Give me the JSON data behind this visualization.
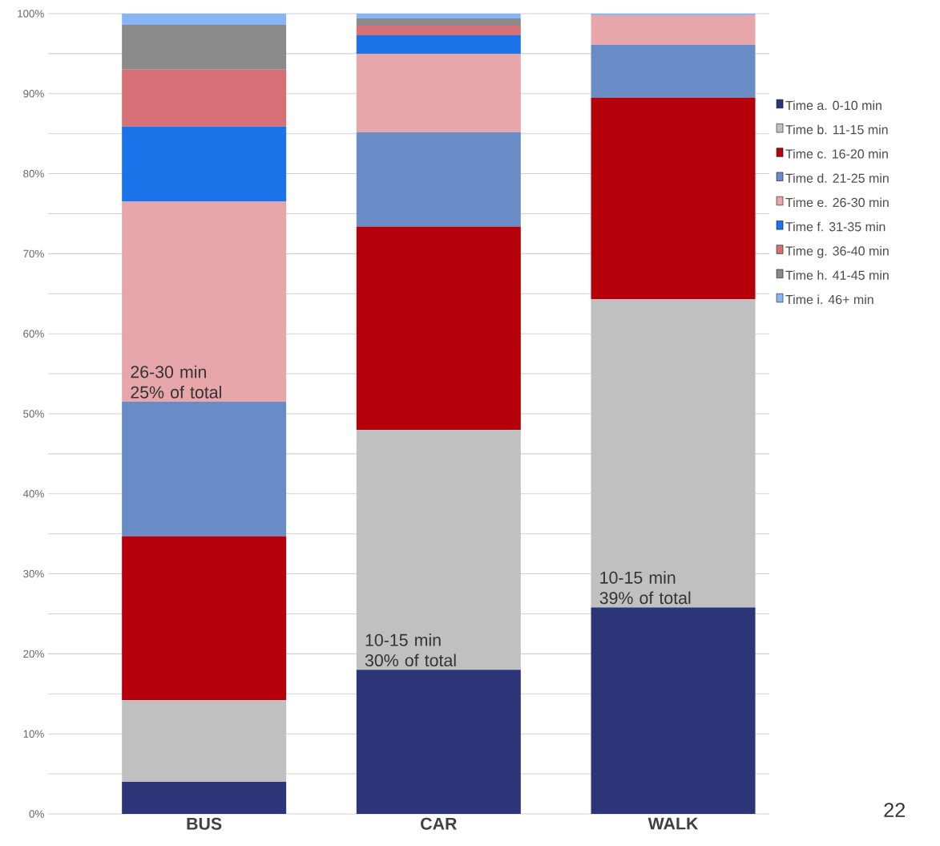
{
  "chart_data": {
    "type": "bar",
    "stacked": true,
    "categories": [
      "BUS",
      "CAR",
      "WALK"
    ],
    "series": [
      {
        "name": "Time a. 0-10 min",
        "color": "#2b3578",
        "values": [
          4.0,
          18.0,
          25.8
        ]
      },
      {
        "name": "Time b. 11-15 min",
        "color": "#c0c0c0",
        "values": [
          10.2,
          30.0,
          38.5
        ]
      },
      {
        "name": "Time c. 16-20 min",
        "color": "#b5000c",
        "values": [
          20.5,
          25.4,
          25.2
        ]
      },
      {
        "name": "Time d. 21-25 min",
        "color": "#6a8cc6",
        "values": [
          16.8,
          11.8,
          6.6
        ]
      },
      {
        "name": "Time e. 26-30 min",
        "color": "#e6a6aa",
        "values": [
          25.0,
          9.8,
          3.7
        ]
      },
      {
        "name": "Time f. 31-35 min",
        "color": "#1a73e8",
        "values": [
          9.4,
          2.3,
          0
        ]
      },
      {
        "name": "Time g. 36-40 min",
        "color": "#d47076",
        "values": [
          7.1,
          1.2,
          0
        ]
      },
      {
        "name": "Time h. 41-45 min",
        "color": "#8a8a8a",
        "values": [
          5.6,
          0.9,
          0
        ]
      },
      {
        "name": "Time i. 46+ min",
        "color": "#8ab4f8",
        "values": [
          1.4,
          0.6,
          0.2
        ]
      }
    ],
    "ylim": [
      0,
      100
    ],
    "yticks": [
      {
        "value": 0,
        "label": "0%"
      },
      {
        "value": 5,
        "label": null
      },
      {
        "value": 10,
        "label": "10%"
      },
      {
        "value": 15,
        "label": null
      },
      {
        "value": 20,
        "label": "20%"
      },
      {
        "value": 25,
        "label": null
      },
      {
        "value": 30,
        "label": "30%"
      },
      {
        "value": 35,
        "label": null
      },
      {
        "value": 40,
        "label": "40%"
      },
      {
        "value": 45,
        "label": null
      },
      {
        "value": 50,
        "label": "50%"
      },
      {
        "value": 55,
        "label": null
      },
      {
        "value": 60,
        "label": "60%"
      },
      {
        "value": 65,
        "label": null
      },
      {
        "value": 70,
        "label": "70%"
      },
      {
        "value": 75,
        "label": null
      },
      {
        "value": 80,
        "label": "80%"
      },
      {
        "value": 85,
        "label": null
      },
      {
        "value": 90,
        "label": "90%"
      },
      {
        "value": 95,
        "label": null
      },
      {
        "value": 100,
        "label": "100%"
      }
    ],
    "grid": "y",
    "legend": "right",
    "annotations": [
      {
        "text": "26-30 min 25% of total",
        "x": "BUS",
        "y": 51.5
      },
      {
        "text": "10-15 min 30% of total",
        "x": "CAR",
        "y": 18.0
      },
      {
        "text": "10-15 min 39% of total",
        "x": "WALK",
        "y": 25.8
      },
      "22"
    ]
  }
}
